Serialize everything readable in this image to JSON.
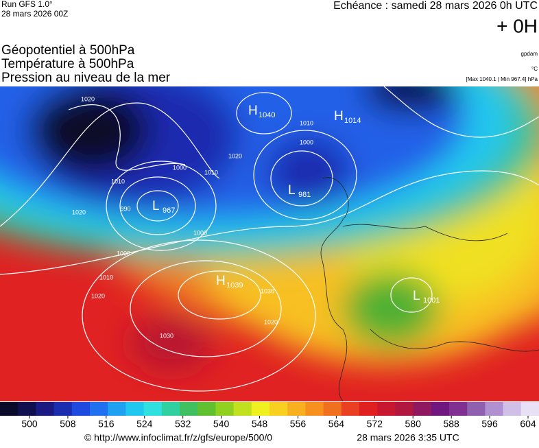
{
  "header": {
    "run": "Run GFS 1.0°",
    "run_date": "28 mars 2026 00Z",
    "valid": "Echéance : samedi 28 mars 2026 0h UTC",
    "lead": "+ 0H",
    "fields": [
      "Géopotentiel à 500hPa",
      "Température à 500hPa",
      "Pression au niveau de la mer"
    ],
    "units": [
      "gpdam",
      "°C",
      "[Max 1040.1 | Min 967.4] hPa"
    ]
  },
  "map": {
    "centers": [
      {
        "letter": "H",
        "value": "1040"
      },
      {
        "letter": "H",
        "value": "1014"
      },
      {
        "letter": "L",
        "value": "967"
      },
      {
        "letter": "L",
        "value": "981"
      },
      {
        "letter": "H",
        "value": "1039"
      },
      {
        "letter": "L",
        "value": "1001"
      }
    ],
    "isobar_labels": [
      "1020",
      "1010",
      "990",
      "1000",
      "1020",
      "1020",
      "1010",
      "1000",
      "1010",
      "1000",
      "1020",
      "1030",
      "1030",
      "1020",
      "1010",
      "1000"
    ]
  },
  "colorbar": {
    "colors": [
      "#0a0a2a",
      "#101050",
      "#1a1a80",
      "#1c2eb0",
      "#1f4ae0",
      "#2070f0",
      "#20a0f0",
      "#20c8f0",
      "#30e0e0",
      "#30d0a0",
      "#40c060",
      "#60c030",
      "#90d020",
      "#c0e020",
      "#f0f020",
      "#f8d020",
      "#f8b020",
      "#f89020",
      "#f07020",
      "#e84020",
      "#e02020",
      "#c81830",
      "#b01840",
      "#901860",
      "#701880",
      "#803090",
      "#9060b0",
      "#b090d0",
      "#d0c0e8",
      "#e8e0f4"
    ],
    "ticks": [
      500,
      508,
      516,
      524,
      532,
      540,
      548,
      556,
      564,
      572,
      580,
      588,
      596,
      604
    ]
  },
  "footer": {
    "source": "© http://www.infoclimat.fr/z/gfs/europe/500/0",
    "created": "28 mars 2026  3:35 UTC"
  }
}
